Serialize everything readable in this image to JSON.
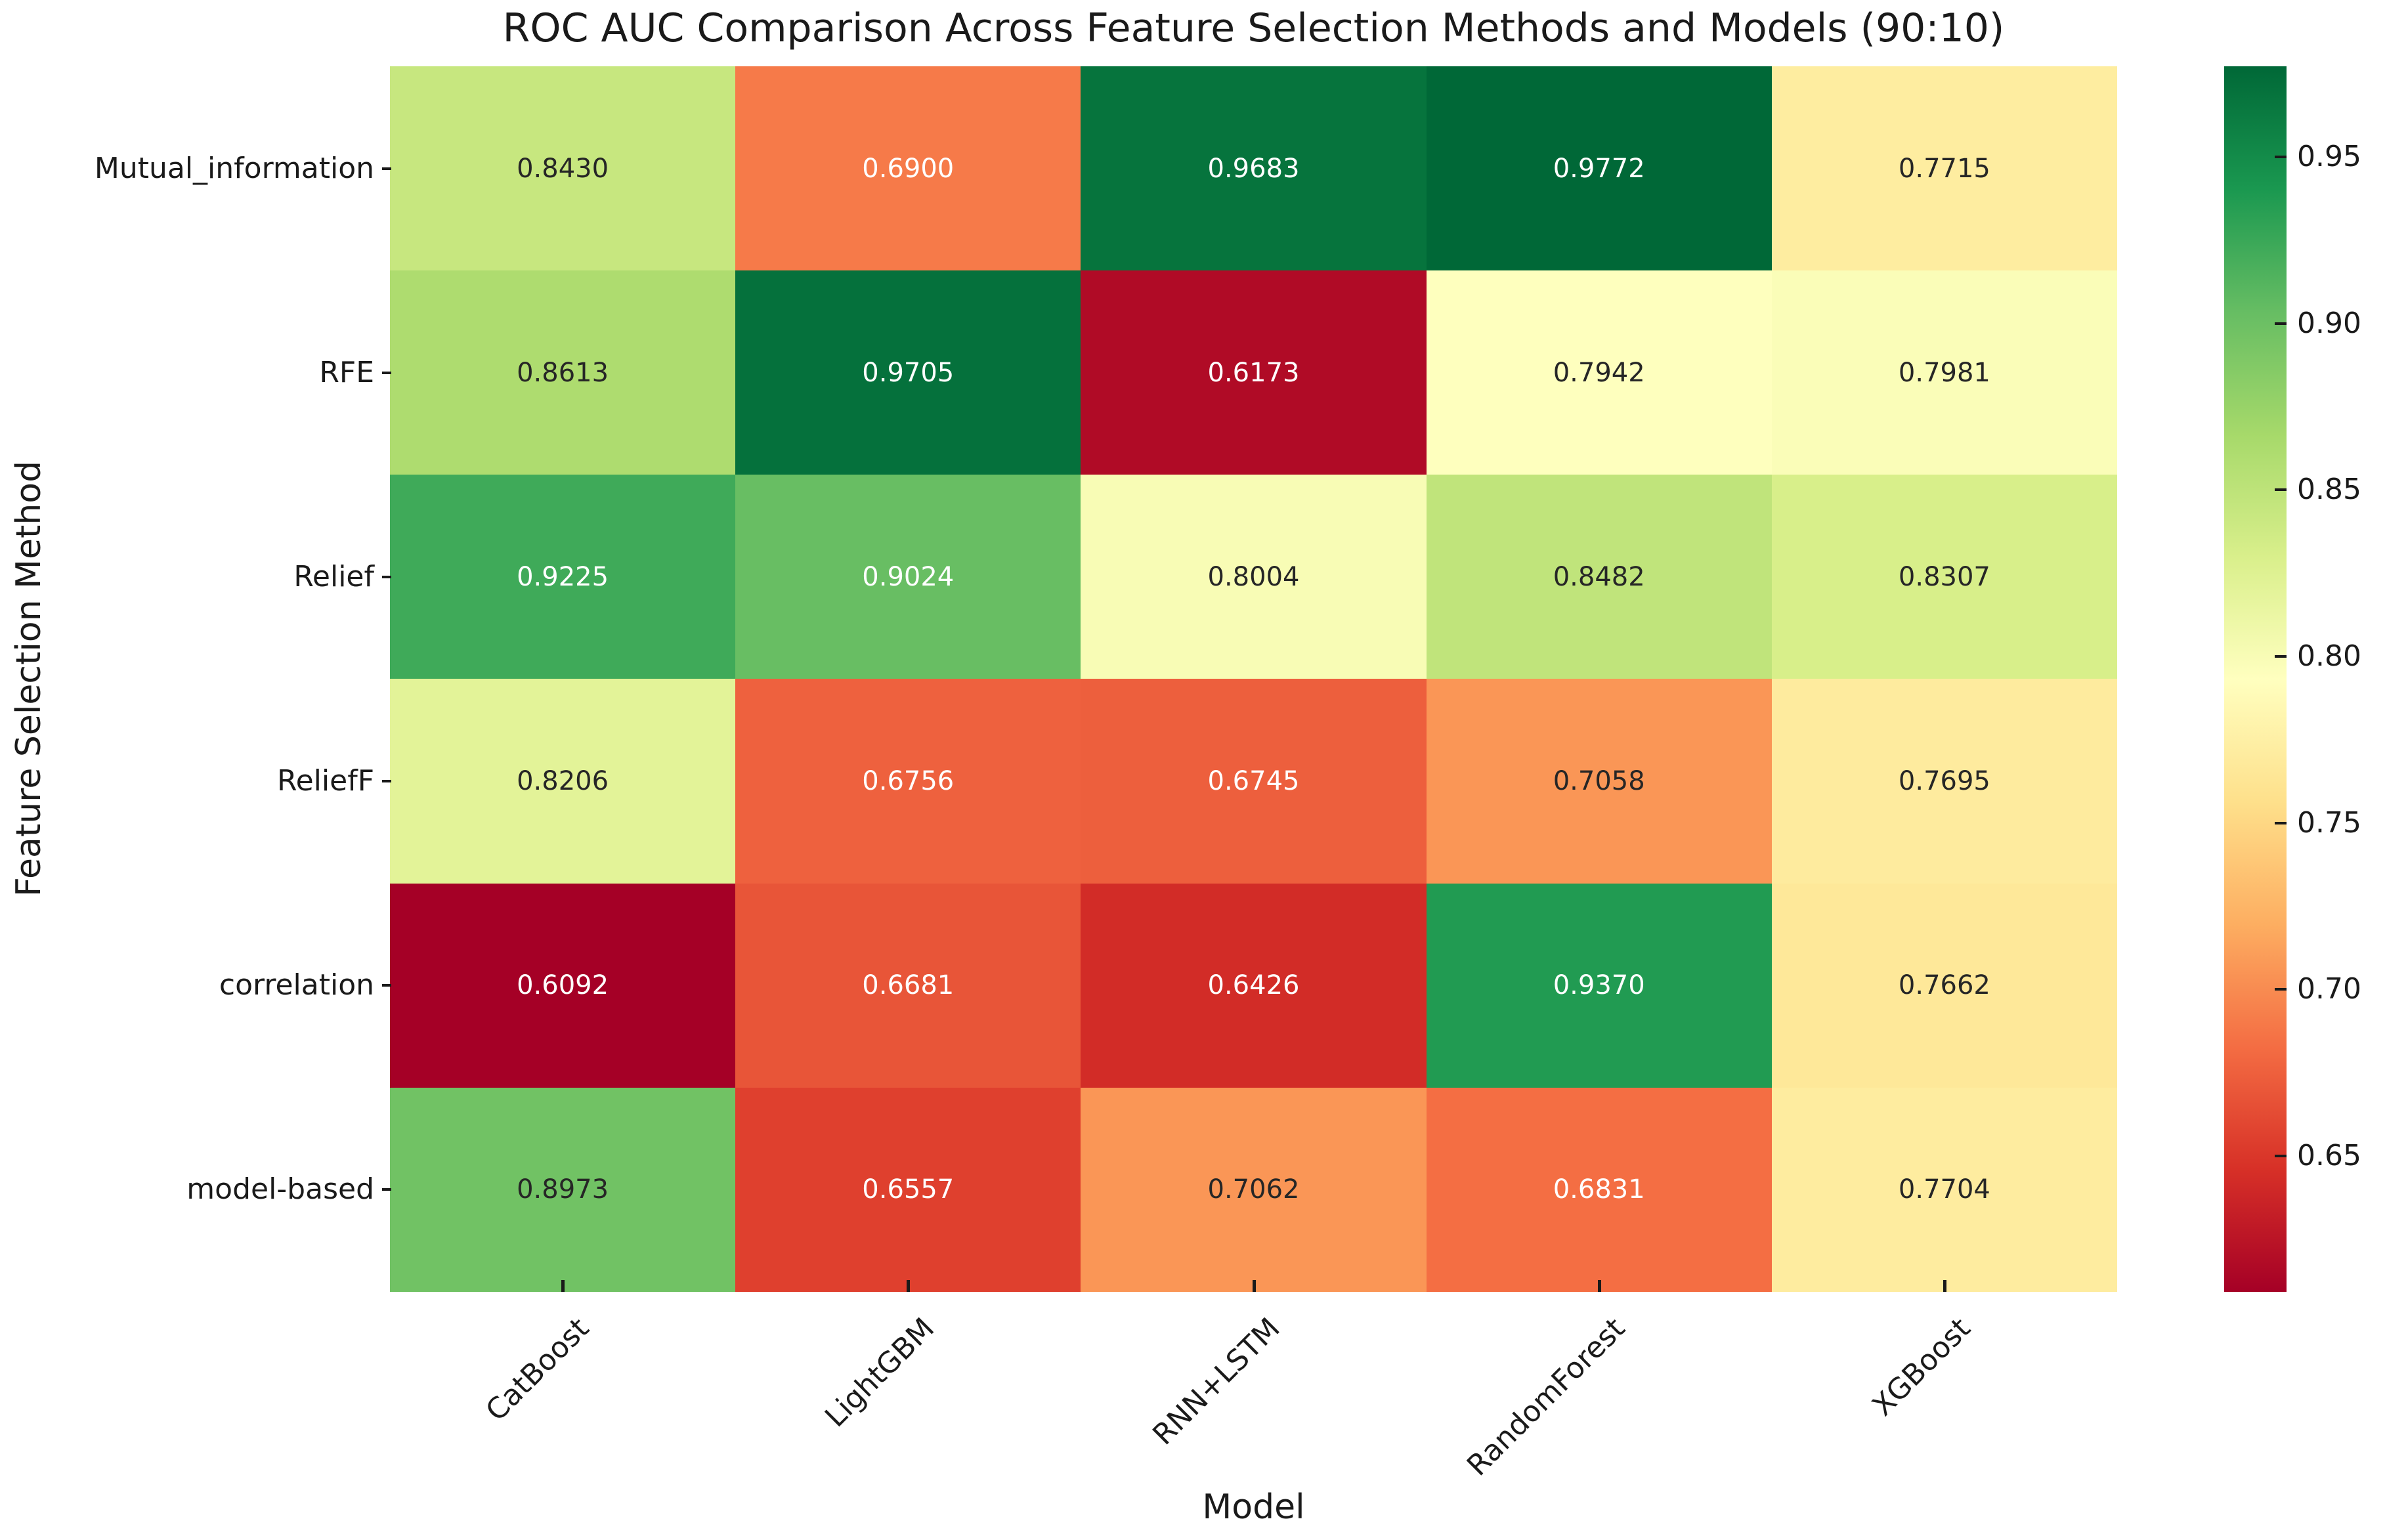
{
  "chart_data": {
    "type": "heatmap",
    "title": "ROC AUC Comparison Across Feature Selection Methods and Models (90:10)",
    "xlabel": "Model",
    "ylabel": "Feature Selection Method",
    "x_categories": [
      "CatBoost",
      "LightGBM",
      "RNN+LSTM",
      "RandomForest",
      "XGBoost"
    ],
    "y_categories": [
      "Mutual_information",
      "RFE",
      "Relief",
      "ReliefF",
      "correlation",
      "model-based"
    ],
    "values": [
      [
        0.843,
        0.69,
        0.9683,
        0.9772,
        0.7715
      ],
      [
        0.8613,
        0.9705,
        0.6173,
        0.7942,
        0.7981
      ],
      [
        0.9225,
        0.9024,
        0.8004,
        0.8482,
        0.8307
      ],
      [
        0.8206,
        0.6756,
        0.6745,
        0.7058,
        0.7695
      ],
      [
        0.6092,
        0.6681,
        0.6426,
        0.937,
        0.7662
      ],
      [
        0.8973,
        0.6557,
        0.7062,
        0.6831,
        0.7704
      ]
    ],
    "values_text": [
      [
        "0.8430",
        "0.6900",
        "0.9683",
        "0.9772",
        "0.7715"
      ],
      [
        "0.8613",
        "0.9705",
        "0.6173",
        "0.7942",
        "0.7981"
      ],
      [
        "0.9225",
        "0.9024",
        "0.8004",
        "0.8482",
        "0.8307"
      ],
      [
        "0.8206",
        "0.6756",
        "0.6745",
        "0.7058",
        "0.7695"
      ],
      [
        "0.6092",
        "0.6681",
        "0.6426",
        "0.9370",
        "0.7662"
      ],
      [
        "0.8973",
        "0.6557",
        "0.7062",
        "0.6831",
        "0.7704"
      ]
    ],
    "vmin": 0.6092,
    "vmax": 0.9772,
    "colormap": "RdYlGn",
    "colormap_colors": [
      "#a50026",
      "#d73027",
      "#f46d43",
      "#fdae61",
      "#fee08b",
      "#ffffbf",
      "#d9ef8b",
      "#a6d96a",
      "#66bd63",
      "#1a9850",
      "#006837"
    ],
    "colorbar_tick_labels": [
      "0.95",
      "0.90",
      "0.85",
      "0.80",
      "0.75",
      "0.70",
      "0.65"
    ],
    "colorbar_ticks": [
      0.95,
      0.9,
      0.85,
      0.8,
      0.75,
      0.7,
      0.65
    ],
    "annotation_color_dark": "#262626",
    "annotation_color_light": "#ffffff",
    "grid": false,
    "legend_position": "right-colorbar"
  }
}
